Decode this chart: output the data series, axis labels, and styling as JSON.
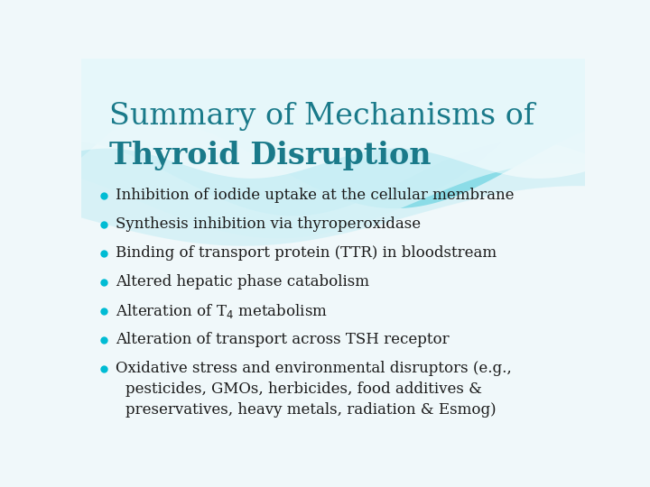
{
  "title_line1": "Summary of Mechanisms of",
  "title_line2": "Thyroid Disruption",
  "title_color": "#1a7a8a",
  "bullet_text_color": "#1a1a1a",
  "bullet_dot_color": "#00bcd4",
  "background_color": "#f0f8fa",
  "bullets": [
    "Inhibition of iodide uptake at the cellular membrane",
    "Synthesis inhibition via thyroperoxidase",
    "Binding of transport protein (TTR) in bloodstream",
    "Altered hepatic phase catabolism",
    "Alteration of T4 metabolism",
    "Alteration of transport across TSH receptor",
    "Oxidative stress and environmental disruptors (e.g.,"
  ],
  "bullet_last_continuation": [
    "   pesticides, GMOs, herbicides, food additives &",
    "   preservatives, heavy metals, radiation & Esmog)"
  ],
  "wave_colors": [
    "#4dc8d8",
    "#6dd8e5",
    "#90e2ec",
    "#b8eef4",
    "#ddf5f8"
  ],
  "wave_white": "#ffffff"
}
